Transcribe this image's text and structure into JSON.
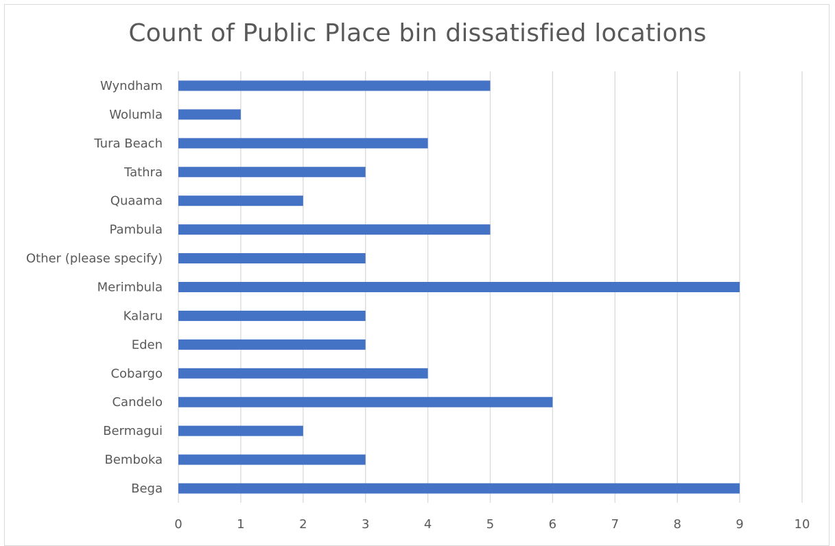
{
  "chart_data": {
    "type": "bar",
    "orientation": "horizontal",
    "title": "Count of Public Place bin dissatisfied locations",
    "categories": [
      "Bega",
      "Bemboka",
      "Bermagui",
      "Candelo",
      "Cobargo",
      "Eden",
      "Kalaru",
      "Merimbula",
      "Other (please specify)",
      "Pambula",
      "Quaama",
      "Tathra",
      "Tura Beach",
      "Wolumla",
      "Wyndham"
    ],
    "values": [
      9,
      3,
      2,
      6,
      4,
      3,
      3,
      9,
      3,
      5,
      2,
      3,
      4,
      1,
      5
    ],
    "xlim": [
      0,
      10
    ],
    "x_ticks": [
      "0",
      "1",
      "2",
      "3",
      "4",
      "5",
      "6",
      "7",
      "8",
      "9",
      "10"
    ],
    "grid": "vertical",
    "legend": "none",
    "bar_color": "#4472c4",
    "grid_color": "#d9d9d9",
    "text_color": "#595959"
  }
}
